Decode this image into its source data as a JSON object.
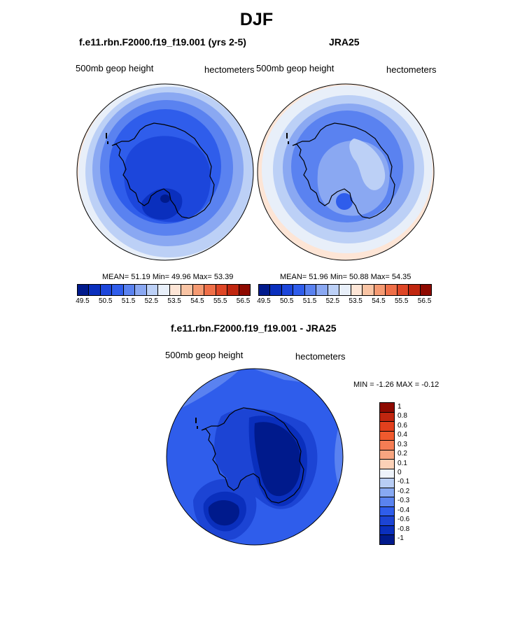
{
  "figure": {
    "title": "DJF"
  },
  "panels": {
    "model": {
      "title": "f.e11.rbn.F2000.f19_f19.001 (yrs 2-5)",
      "left_label": "500mb geop height",
      "right_label": "hectometers",
      "stats": "MEAN=  51.19  Min=  49.96  Max=  53.39"
    },
    "obs": {
      "title": "JRA25",
      "left_label": "500mb geop height",
      "right_label": "hectometers",
      "stats": "MEAN=  51.96  Min=  50.88  Max=  54.35"
    },
    "diff": {
      "title": "f.e11.rbn.F2000.f19_f19.001 - JRA25",
      "left_label": "500mb geop height",
      "right_label": "hectometers",
      "stats": "MIN =  -1.26  MAX =  -0.12"
    }
  },
  "colorbars": {
    "abs": {
      "colors": [
        "#001a8c",
        "#0a2fbd",
        "#1c46db",
        "#2f5deb",
        "#5a82f0",
        "#8aa8f2",
        "#bcd0f6",
        "#e8eff9",
        "#fde5d6",
        "#f9c4a4",
        "#f59a72",
        "#ef6f48",
        "#de4626",
        "#c0260f",
        "#8e0a00"
      ],
      "labels": [
        "49.5",
        "50.5",
        "51.5",
        "52.5",
        "53.5",
        "54.5",
        "55.5",
        "56.5"
      ]
    },
    "diff": {
      "colors": [
        "#8e0a00",
        "#c0260f",
        "#e2401d",
        "#f05a2e",
        "#f57d54",
        "#f8a580",
        "#fcd1b7",
        "#eef3fb",
        "#b8cdf5",
        "#88a9f2",
        "#5a83ef",
        "#2f5deb",
        "#1c44d4",
        "#0a2fbd",
        "#001a8c"
      ],
      "labels": [
        "1",
        "0.8",
        "0.6",
        "0.4",
        "0.3",
        "0.2",
        "0.1",
        "0",
        "-0.1",
        "-0.2",
        "-0.3",
        "-0.4",
        "-0.6",
        "-0.8",
        "-1"
      ]
    }
  }
}
